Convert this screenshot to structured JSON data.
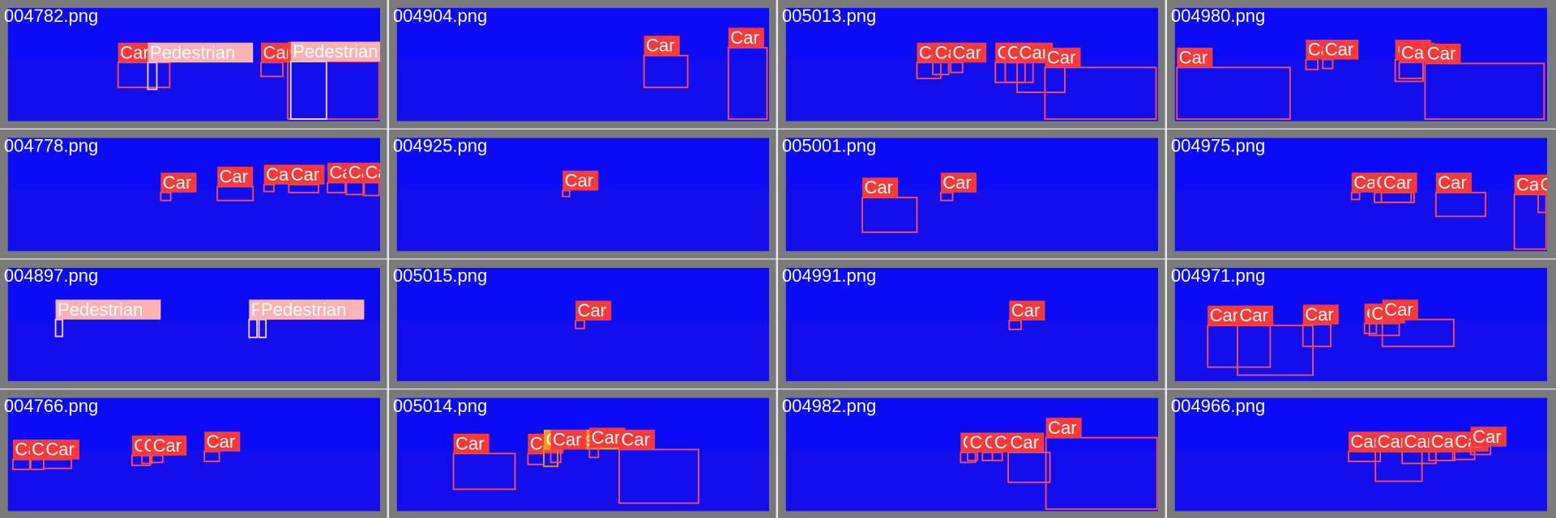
{
  "tiles": [
    {
      "file": "004782.png",
      "boxes": [
        "Car",
        "Pedestrian",
        "Car",
        "Car",
        "Pedestrian"
      ]
    },
    {
      "file": "004904.png",
      "boxes": [
        "Car",
        "Car"
      ]
    },
    {
      "file": "005013.png",
      "boxes": [
        "Car",
        "Car",
        "Car",
        "Car",
        "Car",
        "Car",
        "Car"
      ]
    },
    {
      "file": "004980.png",
      "boxes": [
        "Car",
        "Car",
        "Car",
        "Car",
        "Car",
        "Car"
      ]
    },
    {
      "file": "004778.png",
      "boxes": [
        "Car",
        "Car",
        "Car",
        "Car",
        "Car",
        "Car",
        "Car"
      ]
    },
    {
      "file": "004925.png",
      "boxes": [
        "Car"
      ]
    },
    {
      "file": "005001.png",
      "boxes": [
        "Car",
        "Car"
      ]
    },
    {
      "file": "004975.png",
      "boxes": [
        "Car",
        "Car",
        "Car",
        "Car",
        "Car",
        "Car"
      ]
    },
    {
      "file": "004897.png",
      "boxes": [
        "Pedestrian",
        "Pedestrian",
        "Pedestrian"
      ]
    },
    {
      "file": "005015.png",
      "boxes": [
        "Car"
      ]
    },
    {
      "file": "004991.png",
      "boxes": [
        "Car"
      ]
    },
    {
      "file": "004971.png",
      "boxes": [
        "Car",
        "Car",
        "Car",
        "Car",
        "Car",
        "Car"
      ]
    },
    {
      "file": "004766.png",
      "boxes": [
        "Car",
        "Car",
        "Car",
        "Car",
        "Car",
        "Car",
        "Car"
      ]
    },
    {
      "file": "005014.png",
      "boxes": [
        "Car",
        "Car",
        "Cyclist",
        "Car",
        "Car",
        "Car"
      ]
    },
    {
      "file": "004982.png",
      "boxes": [
        "Car",
        "Car",
        "Car",
        "Car",
        "Car",
        "Car"
      ]
    },
    {
      "file": "004966.png",
      "boxes": [
        "Car",
        "Car",
        "Car",
        "Car",
        "Car",
        "Car"
      ]
    }
  ]
}
